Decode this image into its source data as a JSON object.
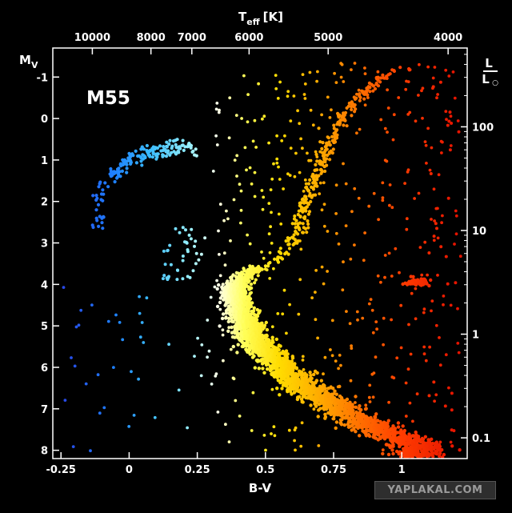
{
  "chart_data": {
    "type": "scatter",
    "title": "M55",
    "xlabel": "B-V",
    "ylabel": "M",
    "ylabel_sub": "V",
    "top_axis_label": "T",
    "top_axis_label_sub": "eff",
    "top_axis_label_unit": "[K]",
    "right_axis_label_num": "L",
    "right_axis_label_den": "L",
    "right_axis_label_den_symbol": "○",
    "xlim": [
      -0.28,
      1.24
    ],
    "ylim": [
      8.2,
      -1.7
    ],
    "x_ticks": [
      {
        "value": -0.25,
        "label": "-0.25"
      },
      {
        "value": 0,
        "label": "0"
      },
      {
        "value": 0.25,
        "label": "0.25"
      },
      {
        "value": 0.5,
        "label": "0.5"
      },
      {
        "value": 0.75,
        "label": "0.75"
      },
      {
        "value": 1,
        "label": "1"
      }
    ],
    "y_ticks": [
      {
        "value": -1,
        "label": "-1"
      },
      {
        "value": 0,
        "label": "0"
      },
      {
        "value": 1,
        "label": "1"
      },
      {
        "value": 2,
        "label": "2"
      },
      {
        "value": 3,
        "label": "3"
      },
      {
        "value": 4,
        "label": "4"
      },
      {
        "value": 5,
        "label": "5"
      },
      {
        "value": 6,
        "label": "6"
      },
      {
        "value": 7,
        "label": "7"
      },
      {
        "value": 8,
        "label": "8"
      }
    ],
    "top_ticks": [
      {
        "bv": -0.135,
        "label": "10000"
      },
      {
        "bv": 0.08,
        "label": "8000"
      },
      {
        "bv": 0.23,
        "label": "7000"
      },
      {
        "bv": 0.44,
        "label": "6000"
      },
      {
        "bv": 0.73,
        "label": "5000"
      },
      {
        "bv": 1.17,
        "label": "4000"
      }
    ],
    "right_ticks": [
      {
        "mv": 0.2,
        "label": "100"
      },
      {
        "mv": 2.7,
        "label": "10"
      },
      {
        "mv": 5.2,
        "label": "1"
      },
      {
        "mv": 7.7,
        "label": "0.1"
      }
    ],
    "sequences": {
      "main_sequence_turnoff": {
        "x": [
          0.75,
          0.6,
          0.5,
          0.44,
          0.4,
          0.385,
          0.4,
          0.45,
          0.52,
          0.62,
          0.74,
          0.88,
          1.0,
          1.12,
          1.2
        ],
        "y": [
          8.0,
          7.2,
          6.4,
          5.6,
          5.0,
          4.5,
          4.1,
          3.7,
          3.35,
          3.1,
          2.9,
          2.75,
          2.6,
          2.5,
          2.4
        ],
        "note": "ms_curve_in_y_x"
      },
      "main_sequence": {
        "y": [
          4.0,
          4.5,
          5.0,
          5.5,
          6.0,
          6.5,
          7.0,
          7.5,
          7.9
        ],
        "x": [
          0.39,
          0.4,
          0.43,
          0.48,
          0.56,
          0.65,
          0.77,
          0.91,
          1.06
        ]
      },
      "red_giant_branch": {
        "y": [
          3.7,
          3.4,
          3.0,
          2.5,
          2.0,
          1.5,
          1.0,
          0.5,
          0.0,
          -0.5,
          -1.0,
          -1.25
        ],
        "x": [
          0.47,
          0.55,
          0.6,
          0.63,
          0.655,
          0.68,
          0.71,
          0.74,
          0.78,
          0.84,
          0.93,
          1.03
        ]
      },
      "horizontal_branch": {
        "x": [
          -0.13,
          -0.1,
          -0.06,
          -0.02,
          0.02,
          0.07,
          0.12,
          0.17,
          0.22
        ],
        "y": [
          1.9,
          1.6,
          1.35,
          1.1,
          0.95,
          0.85,
          0.78,
          0.72,
          0.68
        ]
      },
      "blue_stragglers": {
        "x": [
          0.12,
          0.16,
          0.18,
          0.2,
          0.22,
          0.24,
          0.26
        ],
        "y": [
          3.0,
          3.2,
          3.4,
          3.5,
          3.3,
          3.6,
          3.9
        ]
      }
    }
  },
  "watermark": "YAPLAKAL.COM"
}
